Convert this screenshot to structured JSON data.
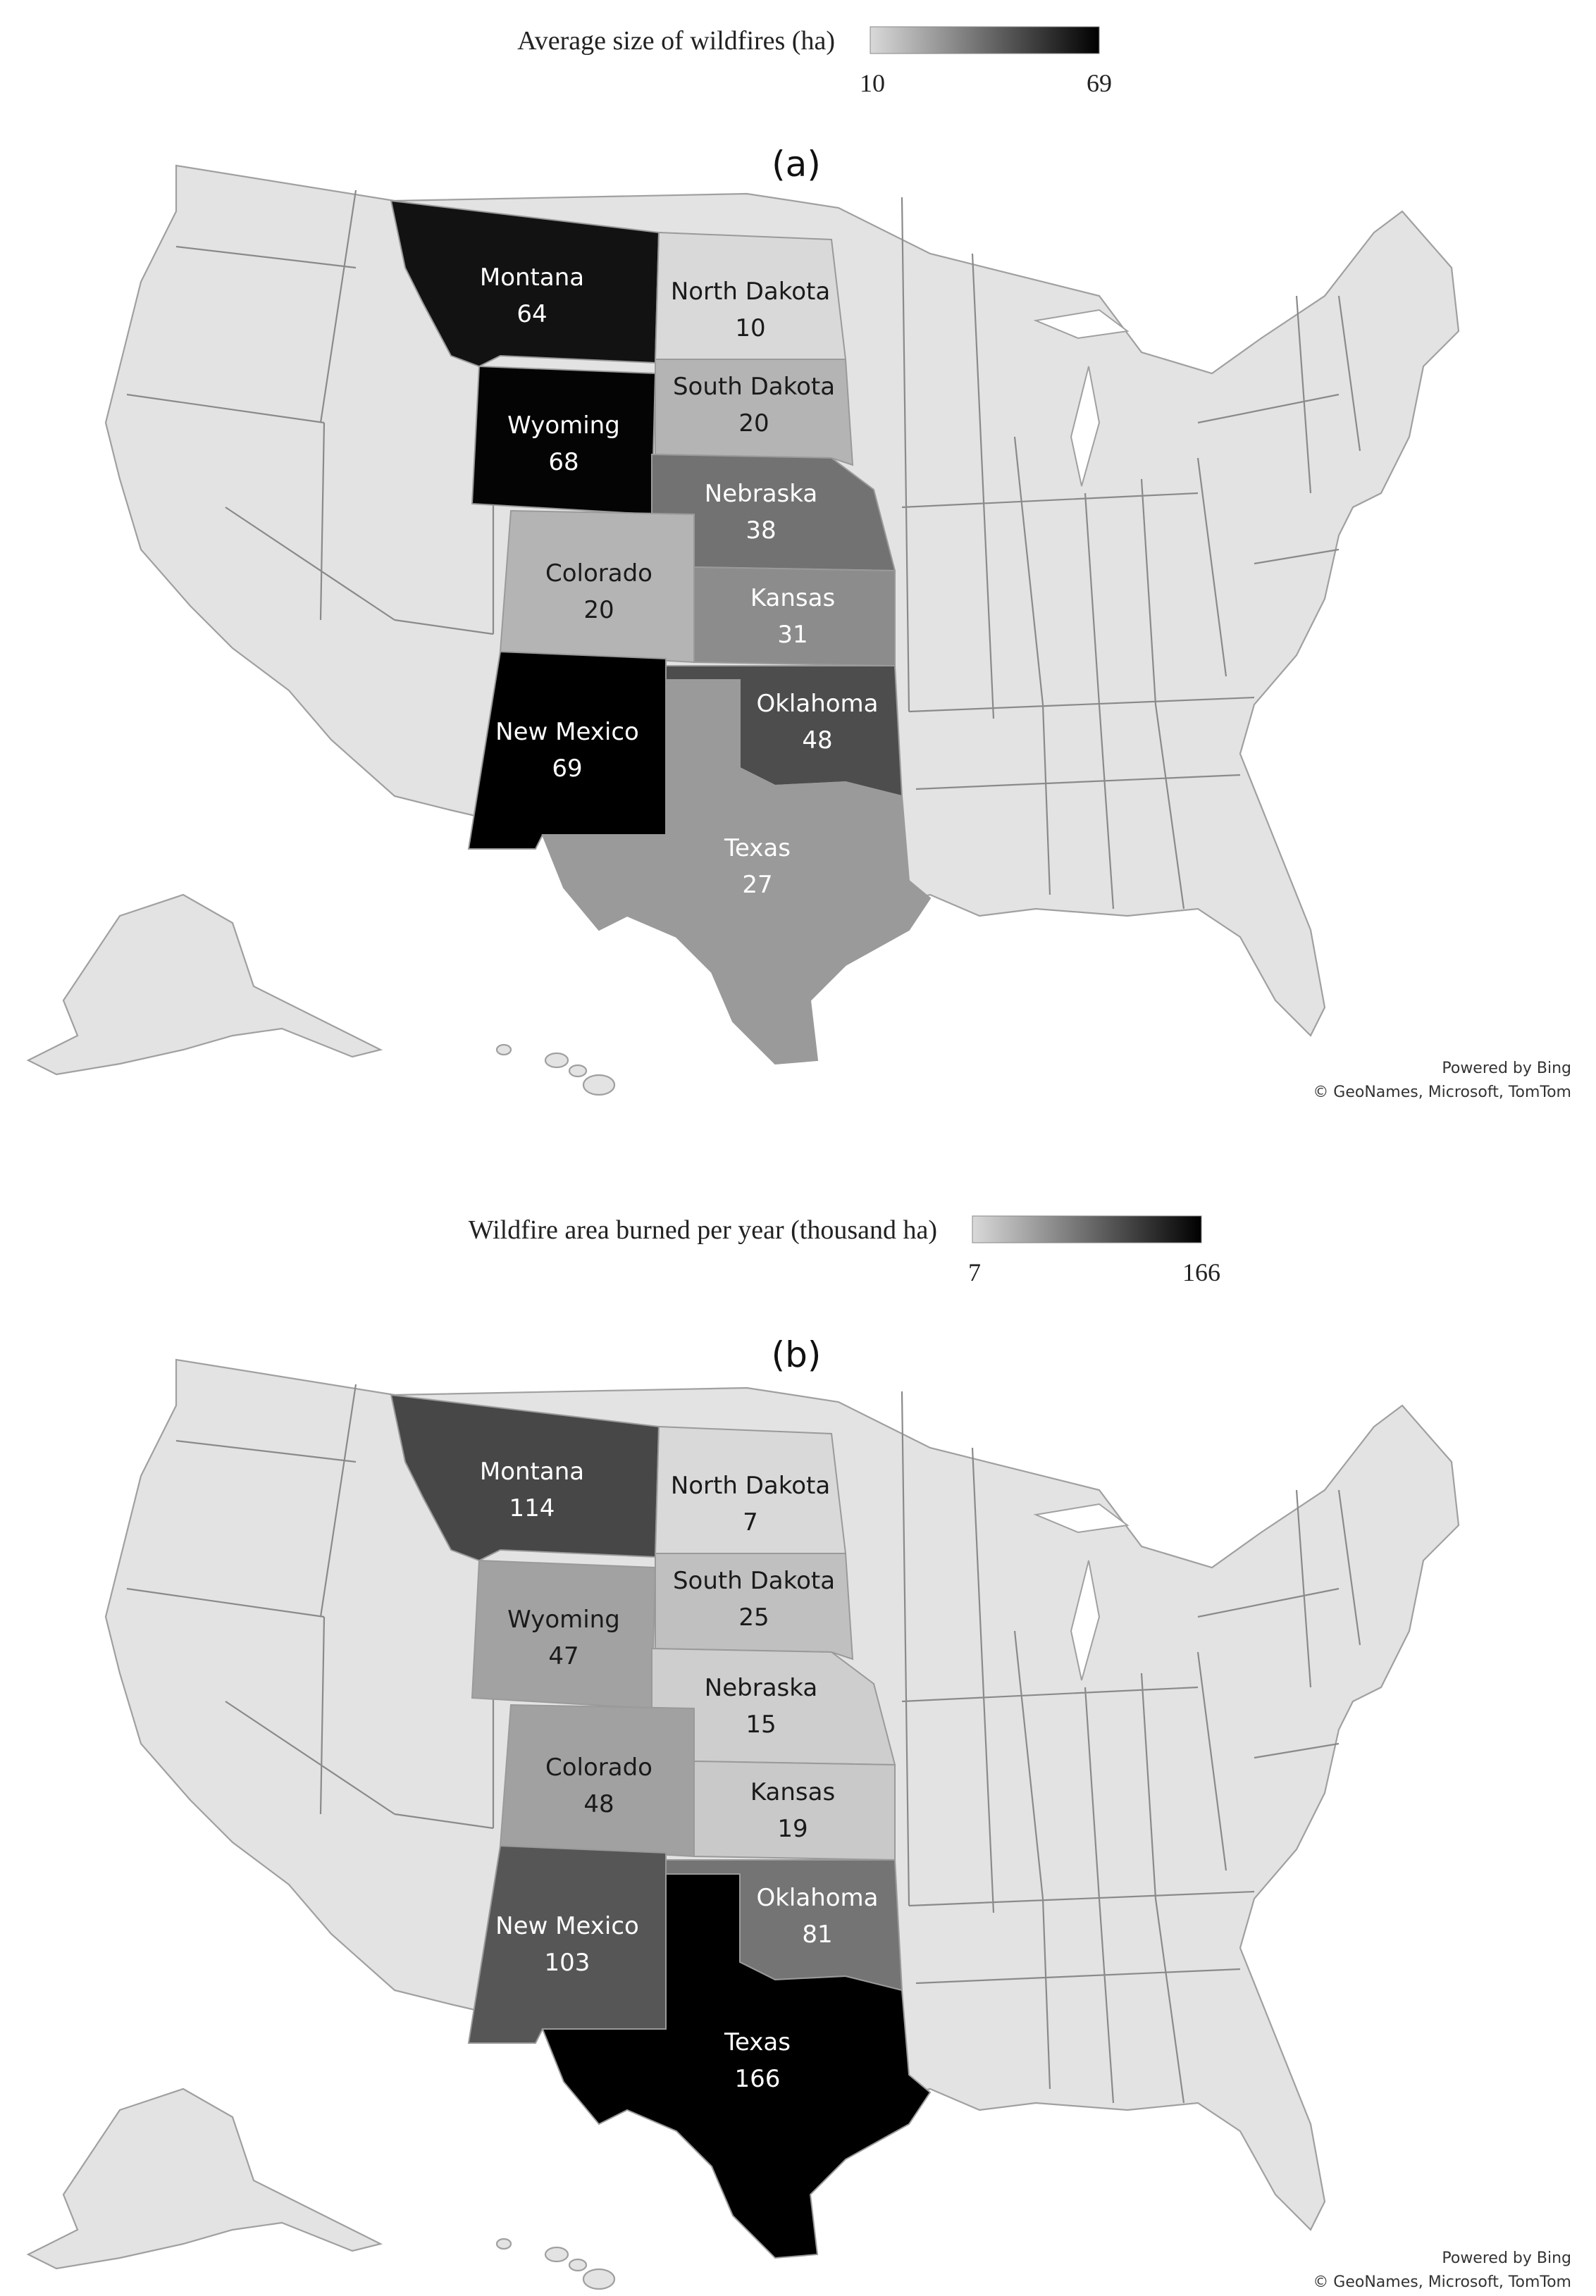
{
  "attribution": {
    "line1": "Powered by Bing",
    "line2": "© GeoNames, Microsoft, TomTom"
  },
  "panels": [
    {
      "id": "a",
      "panel_label": "(a)",
      "legend": {
        "title": "Average size of wildfires (ha)",
        "min": "10",
        "max": "69",
        "min_value": 10,
        "max_value": 69
      },
      "states": [
        {
          "name": "Montana",
          "value": 64,
          "value_text": "64"
        },
        {
          "name": "North Dakota",
          "value": 10,
          "value_text": "10"
        },
        {
          "name": "South Dakota",
          "value": 20,
          "value_text": "20"
        },
        {
          "name": "Wyoming",
          "value": 68,
          "value_text": "68"
        },
        {
          "name": "Nebraska",
          "value": 38,
          "value_text": "38"
        },
        {
          "name": "Colorado",
          "value": 20,
          "value_text": "20"
        },
        {
          "name": "Kansas",
          "value": 31,
          "value_text": "31"
        },
        {
          "name": "Oklahoma",
          "value": 48,
          "value_text": "48"
        },
        {
          "name": "New Mexico",
          "value": 69,
          "value_text": "69"
        },
        {
          "name": "Texas",
          "value": 27,
          "value_text": "27"
        }
      ]
    },
    {
      "id": "b",
      "panel_label": "(b)",
      "legend": {
        "title": "Wildfire area burned per year  (thousand ha)",
        "min": "7",
        "max": "166",
        "min_value": 7,
        "max_value": 166
      },
      "states": [
        {
          "name": "Montana",
          "value": 114,
          "value_text": "114"
        },
        {
          "name": "North Dakota",
          "value": 7,
          "value_text": "7"
        },
        {
          "name": "South Dakota",
          "value": 25,
          "value_text": "25"
        },
        {
          "name": "Wyoming",
          "value": 47,
          "value_text": "47"
        },
        {
          "name": "Nebraska",
          "value": 15,
          "value_text": "15"
        },
        {
          "name": "Colorado",
          "value": 48,
          "value_text": "48"
        },
        {
          "name": "Kansas",
          "value": 19,
          "value_text": "19"
        },
        {
          "name": "Oklahoma",
          "value": 81,
          "value_text": "81"
        },
        {
          "name": "New Mexico",
          "value": 103,
          "value_text": "103"
        },
        {
          "name": "Texas",
          "value": 166,
          "value_text": "166"
        }
      ]
    }
  ]
}
